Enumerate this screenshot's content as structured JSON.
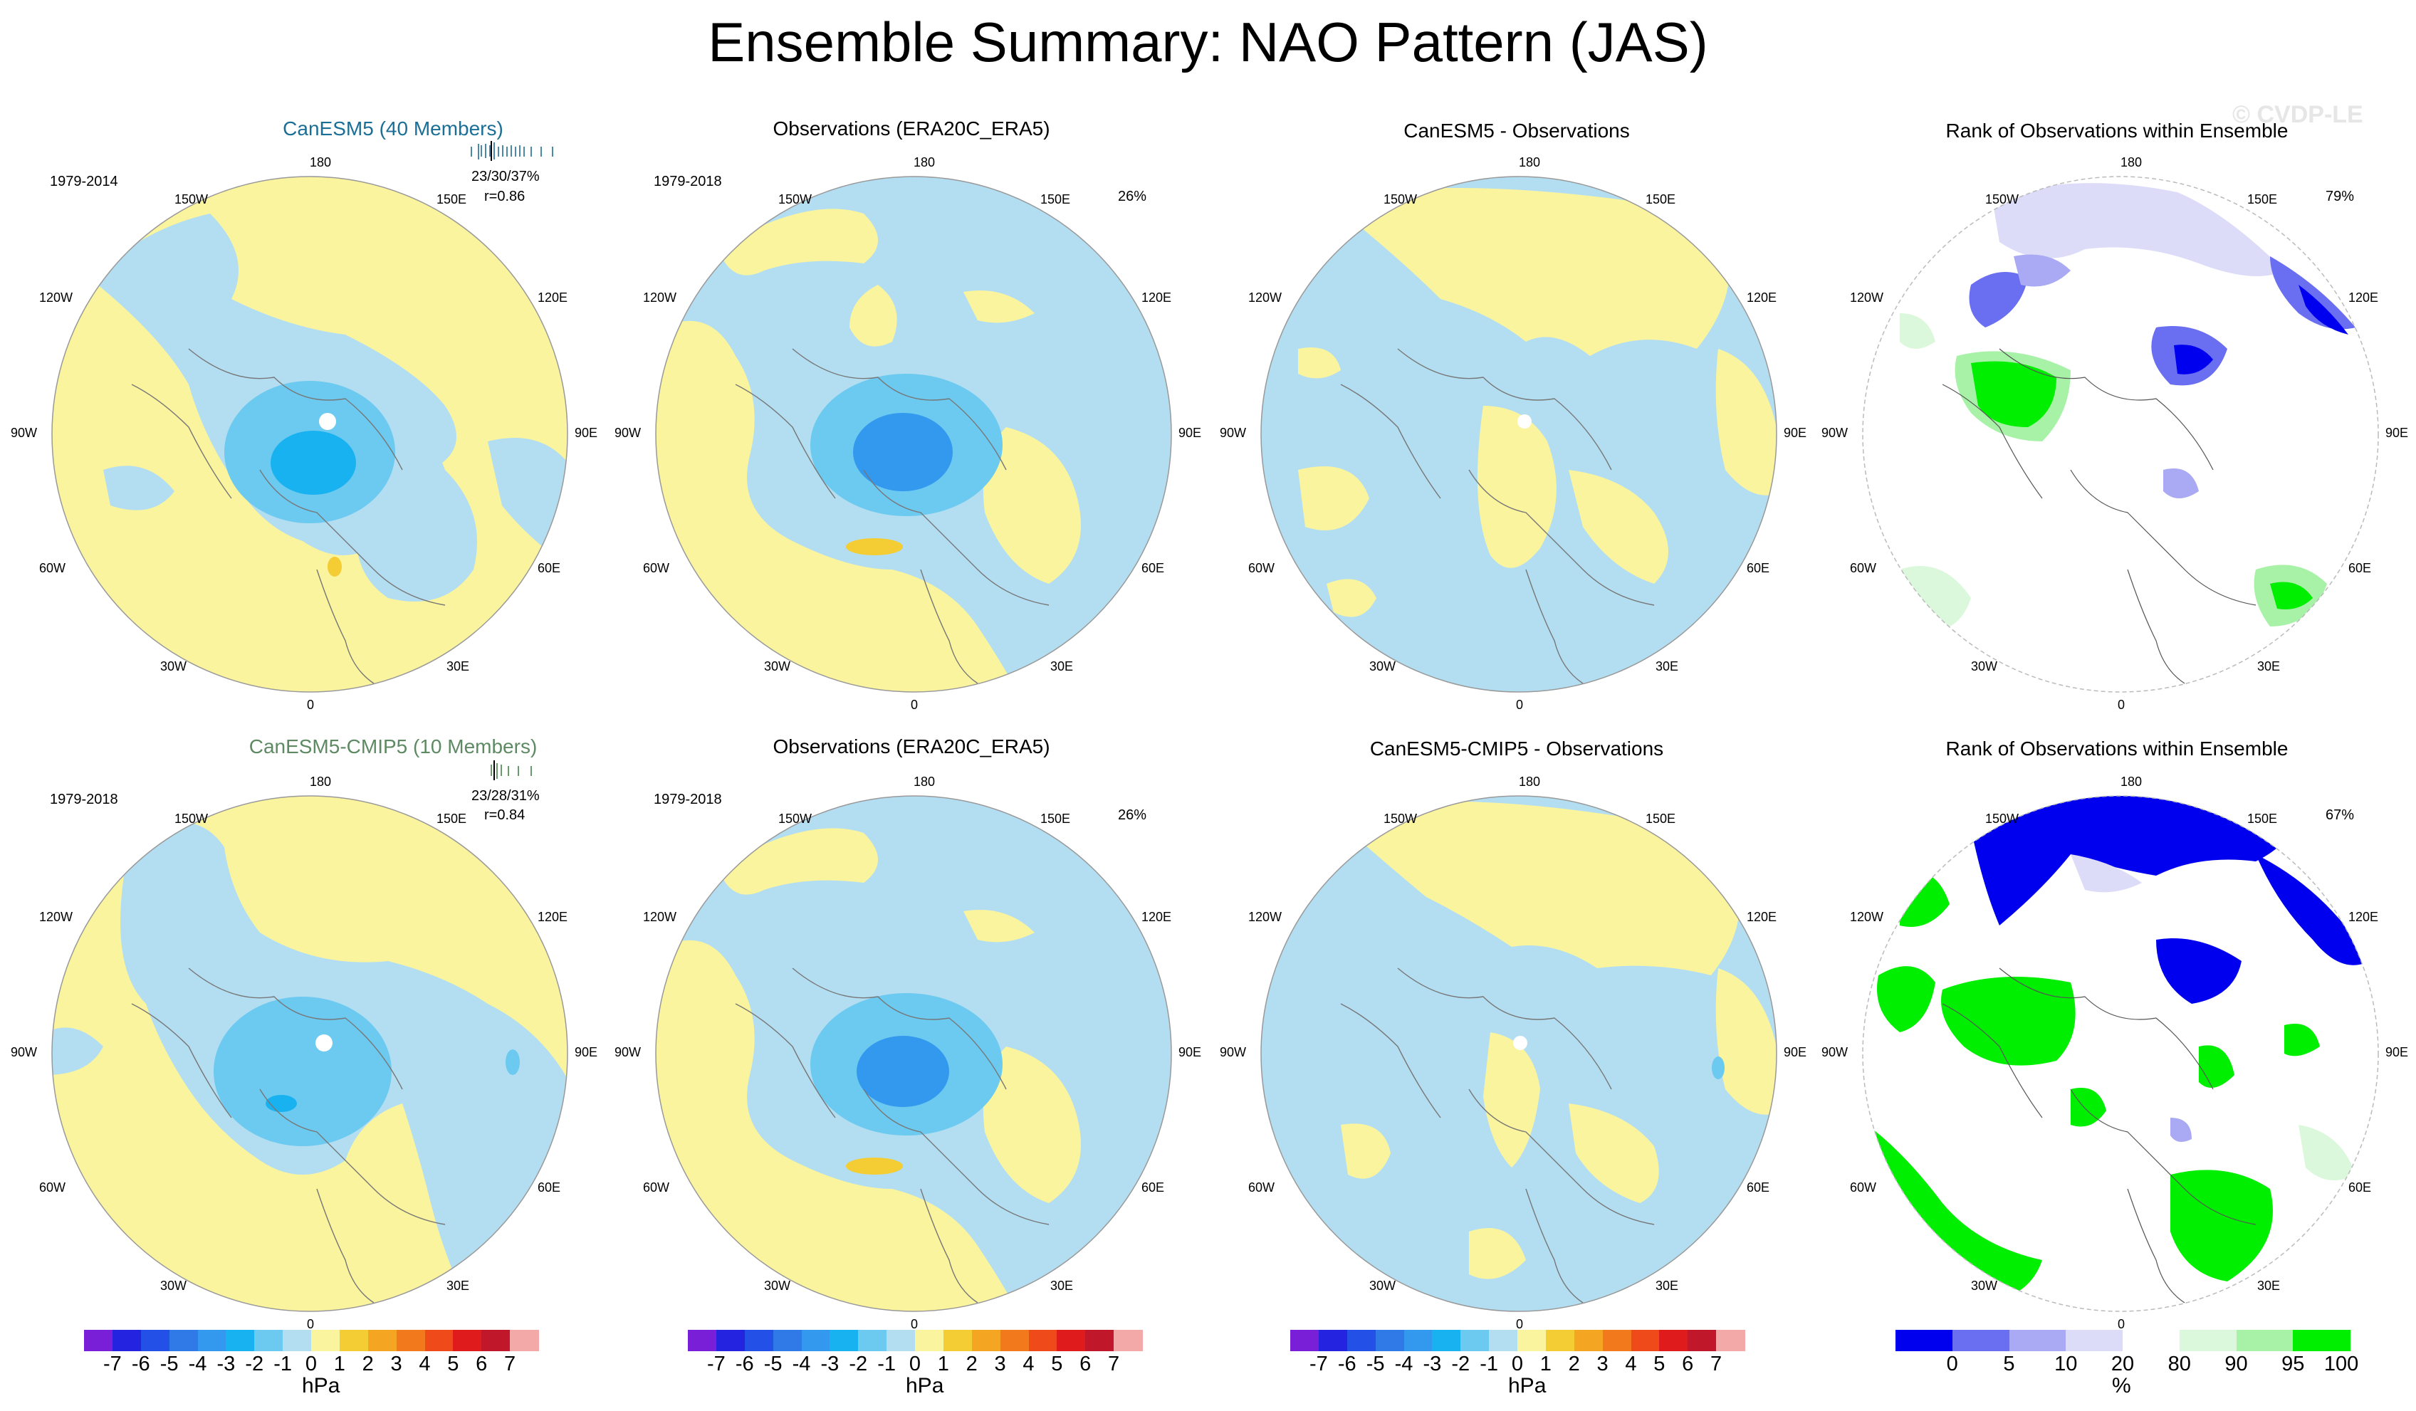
{
  "page_title": "Ensemble Summary: NAO Pattern (JAS)",
  "watermark": "© CVDP-LE",
  "chart_data": [
    {
      "type": "heatmap",
      "panel": "top-model",
      "title": "CanESM5 (40 Members)",
      "period": "1979-2014",
      "stats": "23/30/37%",
      "correlation": "r=0.86",
      "units": "hPa"
    },
    {
      "type": "heatmap",
      "panel": "top-obs",
      "title": "Observations (ERA20C_ERA5)",
      "period": "1979-2018",
      "percent": "26%",
      "units": "hPa"
    },
    {
      "type": "heatmap",
      "panel": "top-diff",
      "title": "CanESM5 - Observations",
      "units": "hPa"
    },
    {
      "type": "heatmap",
      "panel": "top-rank",
      "title": "Rank of Observations within Ensemble",
      "percent": "79%",
      "units": "%"
    },
    {
      "type": "heatmap",
      "panel": "bottom-model",
      "title": "CanESM5-CMIP5 (10 Members)",
      "period": "1979-2018",
      "stats": "23/28/31%",
      "correlation": "r=0.84",
      "units": "hPa"
    },
    {
      "type": "heatmap",
      "panel": "bottom-obs",
      "title": "Observations (ERA20C_ERA5)",
      "period": "1979-2018",
      "percent": "26%",
      "units": "hPa"
    },
    {
      "type": "heatmap",
      "panel": "bottom-diff",
      "title": "CanESM5-CMIP5 - Observations",
      "units": "hPa"
    },
    {
      "type": "heatmap",
      "panel": "bottom-rank",
      "title": "Rank of Observations within Ensemble",
      "percent": "67%",
      "units": "%"
    }
  ],
  "map_labels": {
    "n180": "180",
    "n150w": "150W",
    "n150e": "150E",
    "n120w": "120W",
    "n120e": "120E",
    "n90w": "90W",
    "n90e": "90E",
    "n60w": "60W",
    "n60e": "60E",
    "n30w": "30W",
    "n30e": "30E",
    "n0": "0"
  },
  "colorbar_hpa": {
    "ticks": [
      "-7",
      "-6",
      "-5",
      "-4",
      "-3",
      "-2",
      "-1",
      "0",
      "1",
      "2",
      "3",
      "4",
      "5",
      "6",
      "7"
    ],
    "unit": "hPa",
    "colors": [
      "#7a1fd8",
      "#2323e0",
      "#2350e6",
      "#2f7ae6",
      "#3399ee",
      "#19b2f0",
      "#6cc9ef",
      "#b3def1",
      "#fbf49e",
      "#f4cc33",
      "#f4a623",
      "#f27a1c",
      "#ef4a19",
      "#e01b1b",
      "#c0182a",
      "#f4a9a9"
    ]
  },
  "colorbar_rank": {
    "ticks": [
      "0",
      "5",
      "10",
      "20",
      "80",
      "90",
      "95",
      "100"
    ],
    "unit": "%",
    "colors": [
      "#0000ee",
      "#6a6ef0",
      "#aaaaf4",
      "#dcdcf8",
      "#ffffff",
      "#dcf8dc",
      "#a8f2a8",
      "#00ee00"
    ]
  }
}
